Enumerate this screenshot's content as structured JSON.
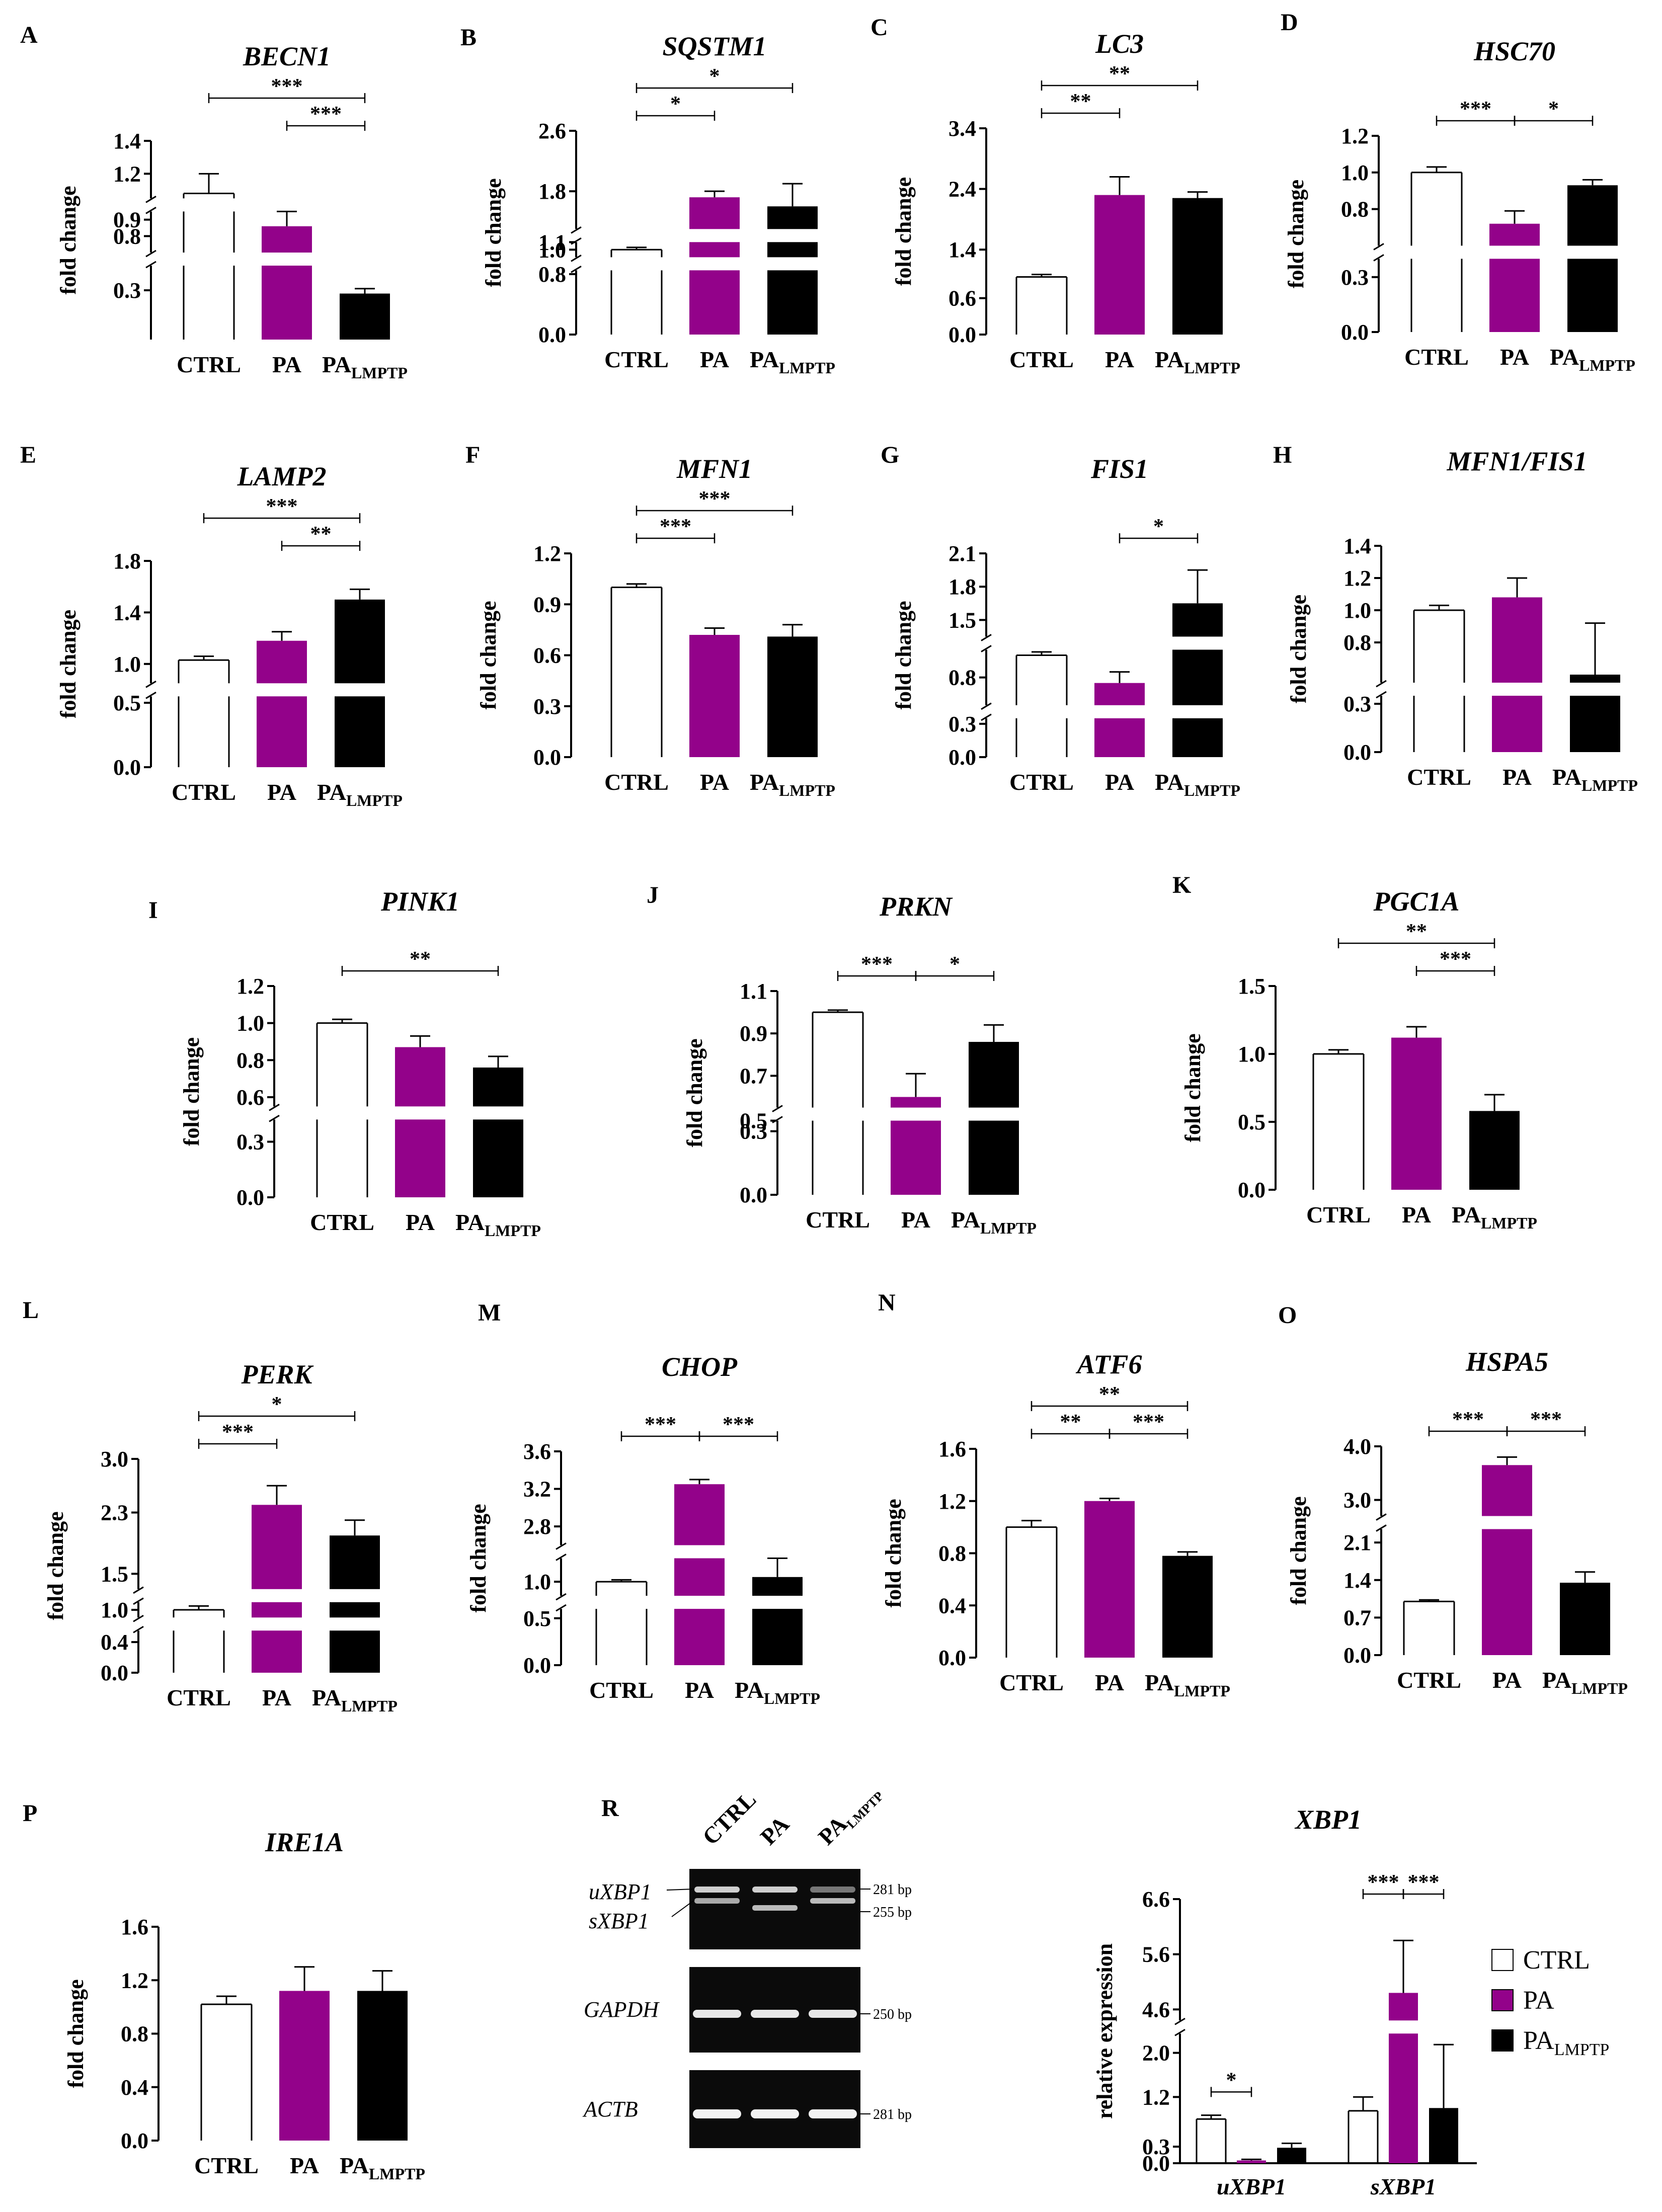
{
  "colors": {
    "CTRL": "#ffffff",
    "PA": "#93028a",
    "PA_LMPTP": "#000000"
  },
  "group_labels": {
    "CTRL": "CTRL",
    "PA": "PA",
    "PA_LMPTP_base": "PA",
    "PA_LMPTP_sub": "LMPTP"
  },
  "chart_data": [
    {
      "panel": "A",
      "type": "bar",
      "title": "BECN1",
      "ylabel": "fold change",
      "categories": [
        "CTRL",
        "PA",
        "PALMPTP"
      ],
      "values": [
        1.08,
        0.86,
        0.28
      ],
      "errors": [
        0.12,
        0.1,
        0.03
      ],
      "yticks": [
        0.3,
        0.8,
        0.9,
        1.2,
        1.4
      ],
      "segments": [
        [
          0.0,
          0.45
        ],
        [
          0.7,
          0.95
        ],
        [
          1.05,
          1.4
        ]
      ],
      "sig": [
        {
          "from": 0,
          "to": 2,
          "label": "***"
        },
        {
          "from": 1,
          "to": 2,
          "label": "***"
        }
      ]
    },
    {
      "panel": "B",
      "type": "bar",
      "title": "SQSTM1",
      "ylabel": "fold change",
      "categories": [
        "CTRL",
        "PA",
        "PALMPTP"
      ],
      "values": [
        1.0,
        1.72,
        1.6
      ],
      "errors": [
        0.03,
        0.08,
        0.3
      ],
      "yticks": [
        0.0,
        0.8,
        1.0,
        1.1,
        1.8,
        2.6
      ],
      "segments": [
        [
          0.0,
          0.85
        ],
        [
          0.9,
          1.1
        ],
        [
          1.3,
          2.6
        ]
      ],
      "sig": [
        {
          "from": 0,
          "to": 1,
          "label": "*"
        },
        {
          "from": 0,
          "to": 2,
          "label": "*"
        }
      ]
    },
    {
      "panel": "C",
      "type": "bar",
      "title": "LC3",
      "ylabel": "fold change",
      "categories": [
        "CTRL",
        "PA",
        "PALMPTP"
      ],
      "values": [
        0.95,
        2.3,
        2.25
      ],
      "errors": [
        0.04,
        0.3,
        0.1
      ],
      "yticks": [
        0.0,
        0.6,
        1.4,
        2.4,
        3.4
      ],
      "sig": [
        {
          "from": 0,
          "to": 1,
          "label": "**"
        },
        {
          "from": 0,
          "to": 2,
          "label": "**"
        }
      ]
    },
    {
      "panel": "D",
      "type": "bar",
      "title": "HSC70",
      "ylabel": "fold change",
      "categories": [
        "CTRL",
        "PA",
        "PALMPTP"
      ],
      "values": [
        1.0,
        0.72,
        0.93
      ],
      "errors": [
        0.03,
        0.07,
        0.03
      ],
      "yticks": [
        0.0,
        0.3,
        0.8,
        1.0,
        1.2
      ],
      "segments": [
        [
          0.0,
          0.4
        ],
        [
          0.6,
          1.2
        ]
      ],
      "sig": [
        {
          "from": 0,
          "to": 1,
          "label": "***"
        },
        {
          "from": 1,
          "to": 2,
          "label": "*"
        }
      ]
    },
    {
      "panel": "E",
      "type": "bar",
      "title": "LAMP2",
      "ylabel": "fold change",
      "categories": [
        "CTRL",
        "PA",
        "PALMPTP"
      ],
      "values": [
        1.03,
        1.18,
        1.5
      ],
      "errors": [
        0.03,
        0.07,
        0.08
      ],
      "yticks": [
        0.0,
        0.5,
        1.0,
        1.4,
        1.8
      ],
      "segments": [
        [
          0.0,
          0.55
        ],
        [
          0.85,
          1.8
        ]
      ],
      "sig": [
        {
          "from": 0,
          "to": 2,
          "label": "***"
        },
        {
          "from": 1,
          "to": 2,
          "label": "**"
        }
      ]
    },
    {
      "panel": "F",
      "type": "bar",
      "title": "MFN1",
      "ylabel": "fold change",
      "categories": [
        "CTRL",
        "PA",
        "PALMPTP"
      ],
      "values": [
        1.0,
        0.72,
        0.71
      ],
      "errors": [
        0.02,
        0.04,
        0.07
      ],
      "yticks": [
        0.0,
        0.3,
        0.6,
        0.9,
        1.2
      ],
      "sig": [
        {
          "from": 0,
          "to": 1,
          "label": "***"
        },
        {
          "from": 0,
          "to": 2,
          "label": "***"
        }
      ]
    },
    {
      "panel": "G",
      "type": "bar",
      "title": "FIS1",
      "ylabel": "fold change",
      "categories": [
        "CTRL",
        "PA",
        "PALMPTP"
      ],
      "values": [
        1.0,
        0.75,
        1.65
      ],
      "errors": [
        0.03,
        0.1,
        0.3
      ],
      "yticks": [
        0.0,
        0.3,
        0.8,
        1.5,
        1.8,
        2.1
      ],
      "segments": [
        [
          0.0,
          0.35
        ],
        [
          0.55,
          1.05
        ],
        [
          1.35,
          2.1
        ]
      ],
      "sig": [
        {
          "from": 1,
          "to": 2,
          "label": "*"
        }
      ]
    },
    {
      "panel": "H",
      "type": "bar",
      "title": "MFN1/FIS1",
      "ylabel": "fold change",
      "categories": [
        "CTRL",
        "PA",
        "PALMPTP"
      ],
      "values": [
        1.0,
        1.08,
        0.6
      ],
      "errors": [
        0.03,
        0.12,
        0.32
      ],
      "yticks": [
        0.0,
        0.3,
        0.8,
        1.0,
        1.2,
        1.4
      ],
      "segments": [
        [
          0.0,
          0.35
        ],
        [
          0.55,
          1.4
        ]
      ],
      "sig": []
    },
    {
      "panel": "I",
      "type": "bar",
      "title": "PINK1",
      "ylabel": "fold change",
      "categories": [
        "CTRL",
        "PA",
        "PALMPTP"
      ],
      "values": [
        1.0,
        0.87,
        0.76
      ],
      "errors": [
        0.02,
        0.06,
        0.06
      ],
      "yticks": [
        0.0,
        0.3,
        0.6,
        0.8,
        1.0,
        1.2
      ],
      "segments": [
        [
          0.0,
          0.42
        ],
        [
          0.55,
          1.2
        ]
      ],
      "sig": [
        {
          "from": 0,
          "to": 2,
          "label": "**"
        }
      ]
    },
    {
      "panel": "J",
      "type": "bar",
      "title": "PRKN",
      "ylabel": "fold change",
      "categories": [
        "CTRL",
        "PA",
        "PALMPTP"
      ],
      "values": [
        1.0,
        0.6,
        0.86
      ],
      "errors": [
        0.01,
        0.11,
        0.08
      ],
      "yticks": [
        0.0,
        0.3,
        0.5,
        0.7,
        0.9,
        1.1
      ],
      "segments": [
        [
          0.0,
          0.35
        ],
        [
          0.55,
          1.1
        ]
      ],
      "sig": [
        {
          "from": 0,
          "to": 1,
          "label": "***"
        },
        {
          "from": 1,
          "to": 2,
          "label": "*"
        }
      ]
    },
    {
      "panel": "K",
      "type": "bar",
      "title": "PGC1A",
      "ylabel": "fold change",
      "categories": [
        "CTRL",
        "PA",
        "PALMPTP"
      ],
      "values": [
        1.0,
        1.12,
        0.58
      ],
      "errors": [
        0.03,
        0.08,
        0.12
      ],
      "yticks": [
        0.0,
        0.5,
        1.0,
        1.5
      ],
      "sig": [
        {
          "from": 0,
          "to": 2,
          "label": "**"
        },
        {
          "from": 1,
          "to": 2,
          "label": "***"
        }
      ]
    },
    {
      "panel": "L",
      "type": "bar",
      "title": "PERK",
      "ylabel": "fold change",
      "categories": [
        "CTRL",
        "PA",
        "PALMPTP"
      ],
      "values": [
        1.0,
        2.4,
        2.0
      ],
      "errors": [
        0.05,
        0.25,
        0.2
      ],
      "yticks": [
        0.0,
        0.4,
        1.0,
        1.5,
        2.3,
        3.0
      ],
      "segments": [
        [
          0.0,
          0.55
        ],
        [
          0.9,
          1.1
        ],
        [
          1.3,
          3.0
        ]
      ],
      "sig": [
        {
          "from": 0,
          "to": 1,
          "label": "***"
        },
        {
          "from": 0,
          "to": 2,
          "label": "*"
        }
      ]
    },
    {
      "panel": "M",
      "type": "bar",
      "title": "CHOP",
      "ylabel": "fold change",
      "categories": [
        "CTRL",
        "PA",
        "PALMPTP"
      ],
      "values": [
        1.0,
        3.25,
        1.05
      ],
      "errors": [
        0.02,
        0.05,
        0.3
      ],
      "yticks": [
        0.0,
        0.5,
        1.0,
        2.8,
        3.2,
        3.6
      ],
      "segments": [
        [
          0.0,
          0.6
        ],
        [
          0.85,
          1.25
        ],
        [
          2.6,
          3.6
        ]
      ],
      "sig": [
        {
          "from": 0,
          "to": 1,
          "label": "***"
        },
        {
          "from": 1,
          "to": 2,
          "label": "***"
        }
      ]
    },
    {
      "panel": "N",
      "type": "bar",
      "title": "ATF6",
      "ylabel": "fold change",
      "categories": [
        "CTRL",
        "PA",
        "PALMPTP"
      ],
      "values": [
        1.0,
        1.2,
        0.78
      ],
      "errors": [
        0.05,
        0.02,
        0.03
      ],
      "yticks": [
        0.0,
        0.4,
        0.8,
        1.2,
        1.6
      ],
      "sig": [
        {
          "from": 0,
          "to": 2,
          "label": "**"
        },
        {
          "from": 0,
          "to": 1,
          "label": "**"
        },
        {
          "from": 1,
          "to": 2,
          "label": "***"
        }
      ]
    },
    {
      "panel": "O",
      "type": "bar",
      "title": "HSPA5",
      "ylabel": "fold change",
      "categories": [
        "CTRL",
        "PA",
        "PALMPTP"
      ],
      "values": [
        1.0,
        3.65,
        1.35
      ],
      "errors": [
        0.03,
        0.15,
        0.2
      ],
      "yticks": [
        0.0,
        0.7,
        1.4,
        2.1,
        3.0,
        4.0
      ],
      "segments": [
        [
          0.0,
          2.35
        ],
        [
          2.7,
          4.0
        ]
      ],
      "sig": [
        {
          "from": 0,
          "to": 1,
          "label": "***"
        },
        {
          "from": 1,
          "to": 2,
          "label": "***"
        }
      ]
    },
    {
      "panel": "P",
      "type": "bar",
      "title": "IRE1A",
      "ylabel": "fold change",
      "categories": [
        "CTRL",
        "PA",
        "PALMPTP"
      ],
      "values": [
        1.02,
        1.12,
        1.12
      ],
      "errors": [
        0.06,
        0.18,
        0.15
      ],
      "yticks": [
        0.0,
        0.4,
        0.8,
        1.2,
        1.6
      ],
      "sig": []
    },
    {
      "panel": "XBP1",
      "type": "bar",
      "title": "XBP1",
      "ylabel": "relative expression",
      "groups": [
        "uXBP1",
        "sXBP1"
      ],
      "series": [
        {
          "name": "CTRL",
          "values": [
            0.8,
            0.95
          ],
          "errors": [
            0.07,
            0.25
          ]
        },
        {
          "name": "PA",
          "values": [
            0.05,
            4.9
          ],
          "errors": [
            0.02,
            0.95
          ]
        },
        {
          "name": "PALMPTP",
          "values": [
            0.28,
            1.0
          ],
          "errors": [
            0.08,
            1.15
          ]
        }
      ],
      "yticks": [
        0.0,
        0.3,
        1.2,
        2.0,
        4.6,
        5.6,
        6.6
      ],
      "segments": [
        [
          0.0,
          2.35
        ],
        [
          4.4,
          6.6
        ]
      ],
      "sig": [
        {
          "group": 0,
          "from": 0,
          "to": 1,
          "label": "*"
        },
        {
          "group": 1,
          "from": 0,
          "to": 1,
          "label": "***"
        },
        {
          "group": 1,
          "from": 1,
          "to": 2,
          "label": "***"
        }
      ],
      "legend": [
        "CTRL",
        "PA",
        "PALMPTP"
      ],
      "legend_position": "right"
    }
  ],
  "gel": {
    "panel": "R",
    "lanes": [
      "CTRL",
      "PA",
      "PA_LMPTP"
    ],
    "rows": [
      {
        "labels": [
          "uXBP1",
          "sXBP1"
        ],
        "bp": [
          "281 bp",
          "255 bp"
        ]
      },
      {
        "labels": [
          "GAPDH"
        ],
        "bp": [
          "250 bp"
        ]
      },
      {
        "labels": [
          "ACTB"
        ],
        "bp": [
          "281 bp"
        ]
      }
    ]
  }
}
